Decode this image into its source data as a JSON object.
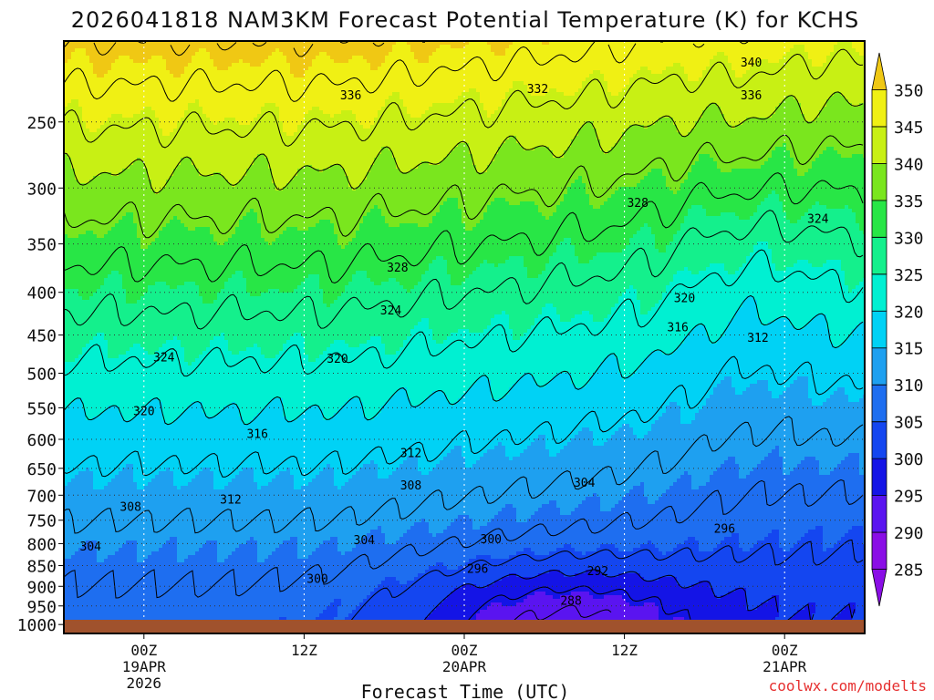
{
  "chart_data": {
    "type": "heatmap",
    "title": "2026041818 NAM3KM Forecast Potential Temperature (K) for KCHS",
    "xlabel": "Forecast Time (UTC)",
    "ylabel": "",
    "credit": "coolwx.com/modelts",
    "x_ticks": [
      {
        "hour": 6,
        "lines": [
          "00Z",
          "19APR",
          "2026"
        ]
      },
      {
        "hour": 18,
        "lines": [
          "12Z"
        ]
      },
      {
        "hour": 30,
        "lines": [
          "00Z",
          "20APR"
        ]
      },
      {
        "hour": 42,
        "lines": [
          "12Z"
        ]
      },
      {
        "hour": 54,
        "lines": [
          "00Z",
          "21APR"
        ]
      }
    ],
    "x_range_hours": [
      0,
      60
    ],
    "y_ticks": [
      "250",
      "300",
      "350",
      "400",
      "450",
      "500",
      "550",
      "600",
      "650",
      "700",
      "750",
      "800",
      "850",
      "900",
      "950",
      "1000"
    ],
    "y_range_hPa": [
      200,
      1025
    ],
    "colorbar": {
      "ticks": [
        "350",
        "345",
        "340",
        "335",
        "330",
        "325",
        "320",
        "315",
        "310",
        "305",
        "300",
        "295",
        "290",
        "285"
      ],
      "bands": [
        {
          "min": 280,
          "max": 285,
          "color": "#8a0ee6"
        },
        {
          "min": 285,
          "max": 290,
          "color": "#8a0ee6"
        },
        {
          "min": 290,
          "max": 295,
          "color": "#5a14f0"
        },
        {
          "min": 295,
          "max": 300,
          "color": "#1414e6"
        },
        {
          "min": 300,
          "max": 305,
          "color": "#1446f0"
        },
        {
          "min": 305,
          "max": 310,
          "color": "#1e6ef0"
        },
        {
          "min": 310,
          "max": 315,
          "color": "#1ea0f0"
        },
        {
          "min": 315,
          "max": 320,
          "color": "#00d2f5"
        },
        {
          "min": 320,
          "max": 325,
          "color": "#00f0d2"
        },
        {
          "min": 325,
          "max": 330,
          "color": "#14f08c"
        },
        {
          "min": 330,
          "max": 335,
          "color": "#28e646"
        },
        {
          "min": 335,
          "max": 340,
          "color": "#7ae61e"
        },
        {
          "min": 340,
          "max": 345,
          "color": "#c8f014"
        },
        {
          "min": 345,
          "max": 350,
          "color": "#f0f014"
        },
        {
          "min": 350,
          "max": 355,
          "color": "#f0c814"
        }
      ]
    },
    "ground_color": "#a0522d",
    "contour_interval_K": 4,
    "contour_labels": [
      {
        "value": "340",
        "hour": 51.5,
        "p": 212
      },
      {
        "value": "336",
        "hour": 51.5,
        "p": 232
      },
      {
        "value": "336",
        "hour": 21.5,
        "p": 232
      },
      {
        "value": "332",
        "hour": 35.5,
        "p": 228
      },
      {
        "value": "328",
        "hour": 43.0,
        "p": 312
      },
      {
        "value": "328",
        "hour": 25.0,
        "p": 373
      },
      {
        "value": "324",
        "hour": 56.5,
        "p": 326
      },
      {
        "value": "324",
        "hour": 24.5,
        "p": 420
      },
      {
        "value": "324",
        "hour": 7.5,
        "p": 478
      },
      {
        "value": "320",
        "hour": 46.5,
        "p": 406
      },
      {
        "value": "320",
        "hour": 20.5,
        "p": 480
      },
      {
        "value": "320",
        "hour": 6.0,
        "p": 554
      },
      {
        "value": "316",
        "hour": 46.0,
        "p": 440
      },
      {
        "value": "316",
        "hour": 14.5,
        "p": 590
      },
      {
        "value": "312",
        "hour": 52.0,
        "p": 453
      },
      {
        "value": "312",
        "hour": 26.0,
        "p": 622
      },
      {
        "value": "312",
        "hour": 12.5,
        "p": 707
      },
      {
        "value": "308",
        "hour": 26.0,
        "p": 680
      },
      {
        "value": "308",
        "hour": 5.0,
        "p": 722
      },
      {
        "value": "304",
        "hour": 39.0,
        "p": 675
      },
      {
        "value": "304",
        "hour": 22.5,
        "p": 791
      },
      {
        "value": "304",
        "hour": 2.0,
        "p": 805
      },
      {
        "value": "300",
        "hour": 32.0,
        "p": 789
      },
      {
        "value": "300",
        "hour": 19.0,
        "p": 880
      },
      {
        "value": "296",
        "hour": 49.5,
        "p": 767
      },
      {
        "value": "296",
        "hour": 31.0,
        "p": 856
      },
      {
        "value": "292",
        "hour": 40.0,
        "p": 862
      },
      {
        "value": "288",
        "hour": 38.0,
        "p": 935
      }
    ]
  }
}
